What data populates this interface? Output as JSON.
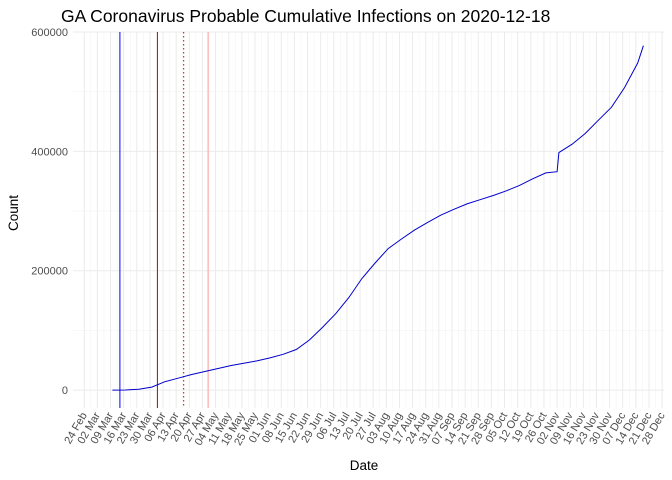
{
  "chart_data": {
    "type": "line",
    "title": "GA Coronavirus Probable Cumulative Infections on 2020-12-18",
    "xlabel": "Date",
    "ylabel": "Count",
    "xlim": [
      "2020-02-18",
      "2020-12-29"
    ],
    "ylim": [
      -30000,
      600000
    ],
    "y_ticks": [
      0,
      200000,
      400000,
      600000
    ],
    "y_tick_labels": [
      "0",
      "200000",
      "400000",
      "600000"
    ],
    "x_ticks": [
      "2020-02-24",
      "2020-03-02",
      "2020-03-09",
      "2020-03-16",
      "2020-03-23",
      "2020-03-30",
      "2020-04-06",
      "2020-04-13",
      "2020-04-20",
      "2020-04-27",
      "2020-05-04",
      "2020-05-11",
      "2020-05-18",
      "2020-05-25",
      "2020-06-01",
      "2020-06-08",
      "2020-06-15",
      "2020-06-22",
      "2020-06-29",
      "2020-07-06",
      "2020-07-13",
      "2020-07-20",
      "2020-07-27",
      "2020-08-03",
      "2020-08-10",
      "2020-08-17",
      "2020-08-24",
      "2020-08-31",
      "2020-09-07",
      "2020-09-14",
      "2020-09-21",
      "2020-09-28",
      "2020-10-05",
      "2020-10-12",
      "2020-10-19",
      "2020-10-26",
      "2020-11-02",
      "2020-11-09",
      "2020-11-16",
      "2020-11-23",
      "2020-11-30",
      "2020-12-07",
      "2020-12-14",
      "2020-12-21",
      "2020-12-28"
    ],
    "x_tick_labels": [
      "24 Feb",
      "02 Mar",
      "09 Mar",
      "16 Mar",
      "23 Mar",
      "30 Mar",
      "06 Apr",
      "13 Apr",
      "20 Apr",
      "27 Apr",
      "04 May",
      "11 May",
      "18 May",
      "25 May",
      "01 Jun",
      "08 Jun",
      "15 Jun",
      "22 Jun",
      "29 Jun",
      "06 Jul",
      "13 Jul",
      "20 Jul",
      "27 Jul",
      "03 Aug",
      "10 Aug",
      "17 Aug",
      "24 Aug",
      "31 Aug",
      "07 Sep",
      "14 Sep",
      "21 Sep",
      "28 Sep",
      "05 Oct",
      "12 Oct",
      "19 Oct",
      "26 Oct",
      "02 Nov",
      "09 Nov",
      "16 Nov",
      "23 Nov",
      "30 Nov",
      "07 Dec",
      "14 Dec",
      "21 Dec",
      "28 Dec"
    ],
    "grid": true,
    "vertical_lines": [
      {
        "x": "2020-03-14",
        "color": "#0000ff",
        "style": "solid"
      },
      {
        "x": "2020-04-03",
        "color": "#cc0000",
        "style": "solid"
      },
      {
        "x": "2020-04-17",
        "color": "#cc0000",
        "style": "dotted"
      },
      {
        "x": "2020-04-30",
        "color": "#ff9999",
        "style": "solid"
      }
    ],
    "series": [
      {
        "color": "#0000cc",
        "x": [
          "2020-03-10",
          "2020-03-17",
          "2020-03-24",
          "2020-03-31",
          "2020-04-07",
          "2020-04-14",
          "2020-04-21",
          "2020-04-28",
          "2020-05-05",
          "2020-05-12",
          "2020-05-19",
          "2020-05-26",
          "2020-06-02",
          "2020-06-09",
          "2020-06-16",
          "2020-06-23",
          "2020-06-30",
          "2020-07-07",
          "2020-07-14",
          "2020-07-21",
          "2020-07-28",
          "2020-08-04",
          "2020-08-11",
          "2020-08-18",
          "2020-08-25",
          "2020-09-01",
          "2020-09-08",
          "2020-09-15",
          "2020-09-22",
          "2020-09-29",
          "2020-10-06",
          "2020-10-13",
          "2020-10-20",
          "2020-10-27",
          "2020-11-02",
          "2020-11-03",
          "2020-11-10",
          "2020-11-17",
          "2020-11-24",
          "2020-12-01",
          "2020-12-08",
          "2020-12-15",
          "2020-12-18"
        ],
        "y": [
          0,
          100,
          1500,
          5000,
          14000,
          20000,
          26000,
          31000,
          36000,
          41000,
          45000,
          49000,
          54000,
          60000,
          68000,
          84000,
          105000,
          128000,
          155000,
          187000,
          213000,
          237000,
          253000,
          268000,
          281000,
          293000,
          303000,
          312000,
          319000,
          326000,
          334000,
          343000,
          354000,
          364000,
          366000,
          398000,
          412000,
          430000,
          452000,
          474000,
          507000,
          548000,
          577000
        ]
      }
    ]
  }
}
